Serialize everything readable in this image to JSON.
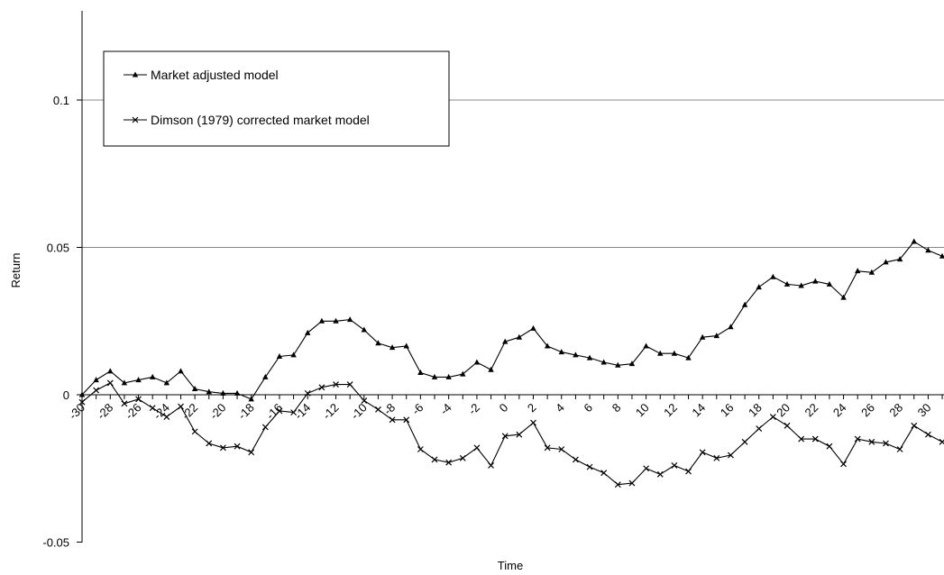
{
  "chart_data": {
    "type": "line",
    "title": "",
    "xlabel": "Time",
    "ylabel": "Return",
    "ylim": [
      -0.05,
      0.13
    ],
    "xlim": [
      -30,
      30
    ],
    "y_ticks": [
      {
        "value": -0.05,
        "label": "-0.05"
      },
      {
        "value": 0,
        "label": "0"
      },
      {
        "value": 0.05,
        "label": "0.05"
      },
      {
        "value": 0.1,
        "label": "0.1"
      }
    ],
    "x_tick_labels": [
      "-30",
      "-28",
      "-26",
      "-24",
      "-22",
      "-20",
      "-18",
      "-16",
      "-14",
      "-12",
      "-10",
      "-8",
      "-6",
      "-4",
      "-2",
      "0",
      "2",
      "4",
      "6",
      "8",
      "10",
      "12",
      "14",
      "16",
      "18",
      "20",
      "22",
      "24",
      "26",
      "28",
      "30"
    ],
    "gridlines": "horizontal",
    "legend_position": "top-left",
    "x": [
      -30,
      -29,
      -28,
      -27,
      -26,
      -25,
      -24,
      -23,
      -22,
      -21,
      -20,
      -19,
      -18,
      -17,
      -16,
      -15,
      -14,
      -13,
      -12,
      -11,
      -10,
      -9,
      -8,
      -7,
      -6,
      -5,
      -4,
      -3,
      -2,
      -1,
      0,
      1,
      2,
      3,
      4,
      5,
      6,
      7,
      8,
      9,
      10,
      11,
      12,
      13,
      14,
      15,
      16,
      17,
      18,
      19,
      20,
      21,
      22,
      23,
      24,
      25,
      26,
      27,
      28,
      29,
      30,
      31
    ],
    "series": [
      {
        "name": "Market adjusted model",
        "marker": "triangle",
        "values": [
          0.0,
          0.005,
          0.008,
          0.004,
          0.005,
          0.006,
          0.004,
          0.008,
          0.002,
          0.001,
          0.0005,
          0.0005,
          -0.0015,
          0.006,
          0.013,
          0.0135,
          0.021,
          0.025,
          0.025,
          0.0255,
          0.022,
          0.0175,
          0.016,
          0.0165,
          0.0075,
          0.006,
          0.006,
          0.007,
          0.011,
          0.0085,
          0.018,
          0.0195,
          0.0225,
          0.0165,
          0.0145,
          0.0135,
          0.0125,
          0.011,
          0.01,
          0.0105,
          0.0165,
          0.014,
          0.014,
          0.0125,
          0.0195,
          0.02,
          0.023,
          0.0305,
          0.0365,
          0.04,
          0.0375,
          0.037,
          0.0385,
          0.0375,
          0.033,
          0.042,
          0.0415,
          0.045,
          0.046,
          0.052,
          0.049,
          0.047
        ]
      },
      {
        "name": "Dimson (1979) corrected market model",
        "marker": "x",
        "values": [
          -0.0025,
          0.0015,
          0.004,
          -0.003,
          -0.0015,
          -0.0045,
          -0.0075,
          -0.004,
          -0.0125,
          -0.0165,
          -0.018,
          -0.0175,
          -0.0195,
          -0.011,
          -0.0055,
          -0.006,
          0.0005,
          0.0025,
          0.0035,
          0.0035,
          -0.002,
          -0.005,
          -0.0085,
          -0.0085,
          -0.0185,
          -0.022,
          -0.023,
          -0.0215,
          -0.018,
          -0.024,
          -0.014,
          -0.0135,
          -0.0095,
          -0.018,
          -0.0185,
          -0.022,
          -0.0245,
          -0.0265,
          -0.0305,
          -0.03,
          -0.025,
          -0.027,
          -0.024,
          -0.026,
          -0.0195,
          -0.0215,
          -0.0205,
          -0.016,
          -0.0115,
          -0.0075,
          -0.0105,
          -0.015,
          -0.015,
          -0.0175,
          -0.0235,
          -0.015,
          -0.016,
          -0.0165,
          -0.0185,
          -0.0105,
          -0.0135,
          -0.016
        ]
      }
    ]
  }
}
